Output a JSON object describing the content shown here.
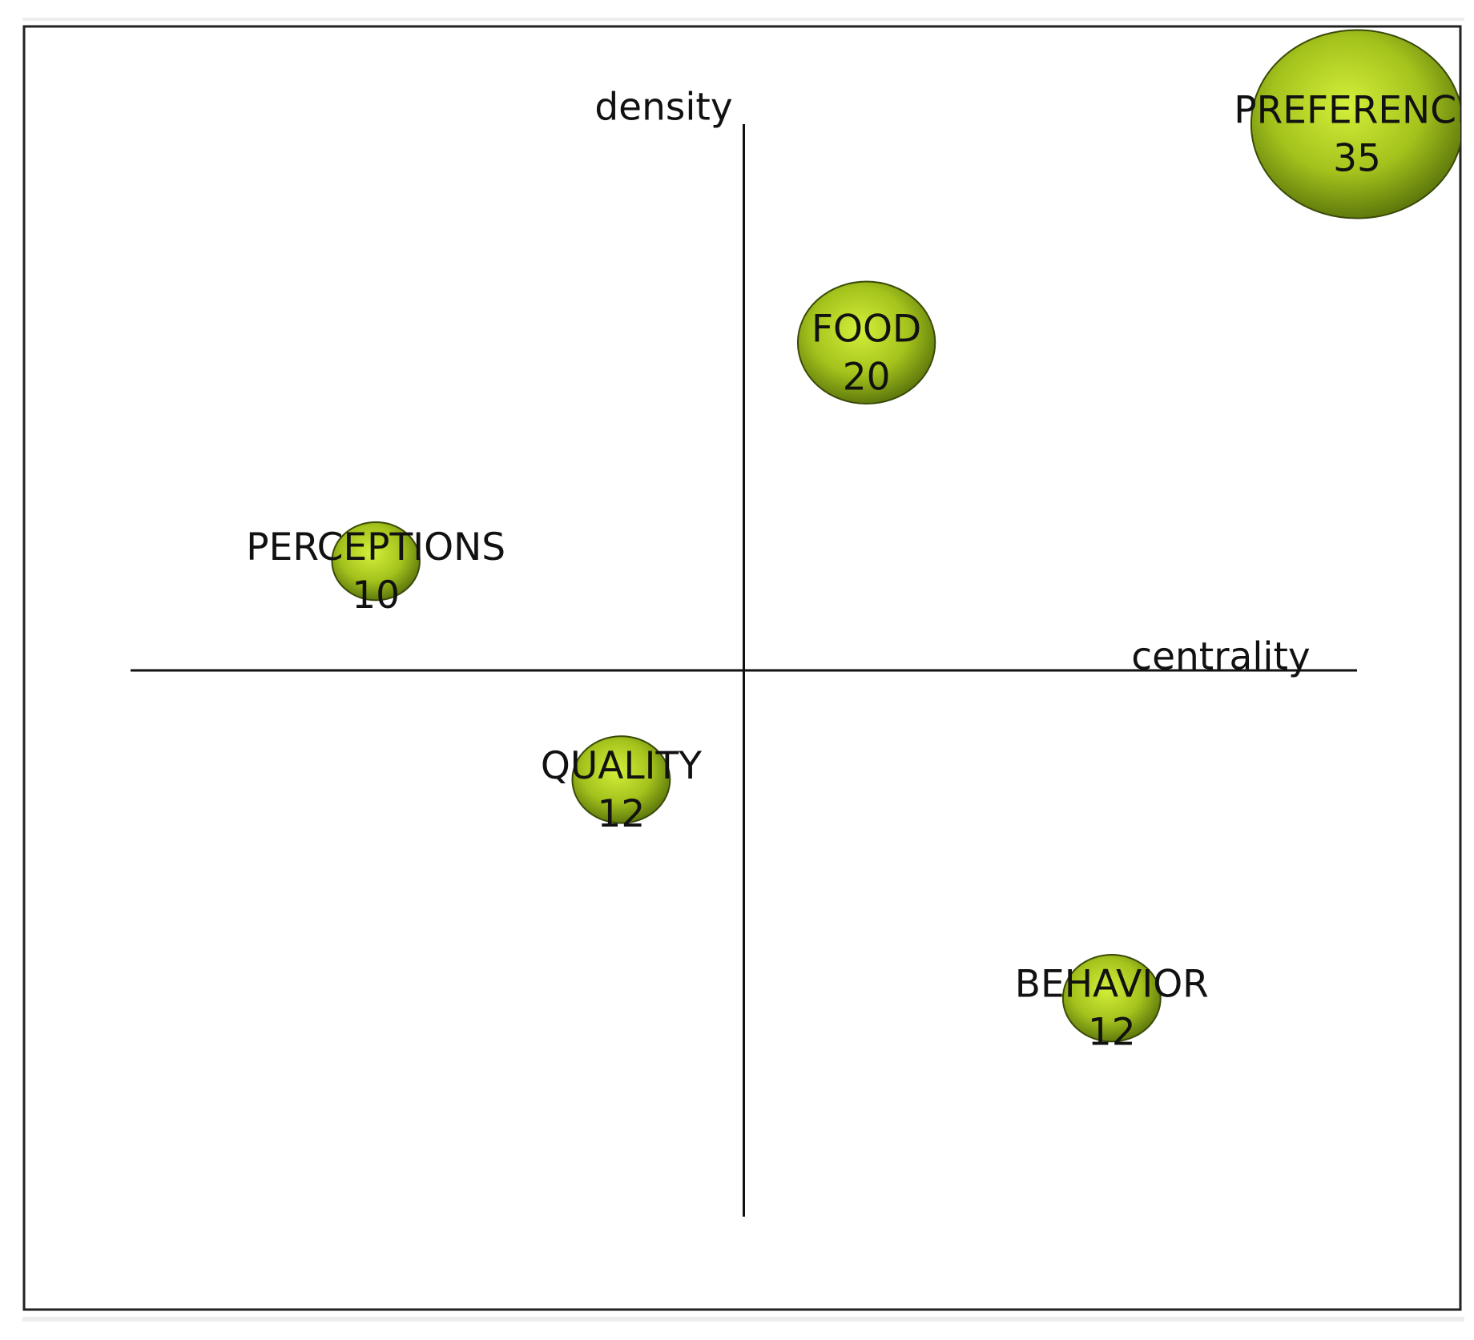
{
  "chart_data": {
    "type": "bubble",
    "x_label": "centrality",
    "y_label": "density",
    "xlim": [
      -1,
      1
    ],
    "ylim": [
      -1,
      1
    ],
    "color": "#a8c81e",
    "points": [
      {
        "label": "PREFERENCE",
        "x": 1.0,
        "y": 1.0,
        "size": 35
      },
      {
        "label": "FOOD",
        "x": 0.2,
        "y": 0.6,
        "size": 20
      },
      {
        "label": "PERCEPTIONS",
        "x": -0.6,
        "y": 0.2,
        "size": 10
      },
      {
        "label": "QUALITY",
        "x": -0.2,
        "y": -0.2,
        "size": 12
      },
      {
        "label": "BEHAVIOR",
        "x": 0.6,
        "y": -0.6,
        "size": 12
      }
    ]
  }
}
